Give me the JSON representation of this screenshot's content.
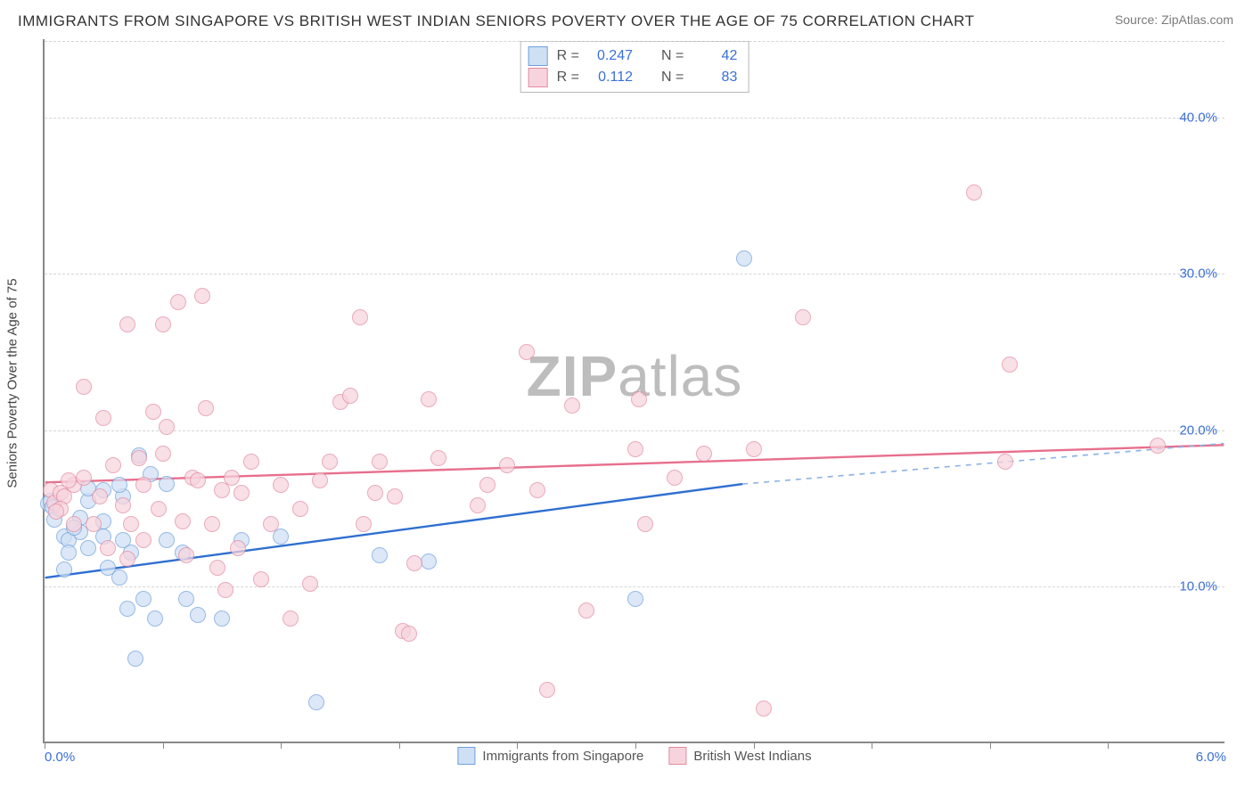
{
  "title": "IMMIGRANTS FROM SINGAPORE VS BRITISH WEST INDIAN SENIORS POVERTY OVER THE AGE OF 75 CORRELATION CHART",
  "source": "Source: ZipAtlas.com",
  "watermark_parts": [
    "ZIP",
    "atlas"
  ],
  "ylabel": "Seniors Poverty Over the Age of 75",
  "chart": {
    "type": "scatter",
    "background_color": "#ffffff",
    "grid_color": "#d5d5d5",
    "axis_color": "#888888",
    "label_color": "#444444",
    "value_color": "#3b6fd8",
    "xlim": [
      0.0,
      6.0
    ],
    "ylim": [
      0.0,
      45.0
    ],
    "yticks": [
      10.0,
      20.0,
      30.0,
      40.0
    ],
    "ytick_labels": [
      "10.0%",
      "20.0%",
      "30.0%",
      "40.0%"
    ],
    "xtick_positions": [
      0.0,
      0.6,
      1.2,
      1.8,
      2.4,
      3.0,
      3.6,
      4.2,
      4.8,
      5.4
    ],
    "xtick_labels": {
      "0.0": "0.0%",
      "6.0": "6.0%"
    },
    "marker_radius": 9,
    "marker_border_width": 1.4,
    "series": [
      {
        "name": "Immigrants from Singapore",
        "fill": "#cfe0f5",
        "stroke": "#6f9fdd",
        "fill_opacity": 0.72,
        "trend": {
          "color": "#2f6fd0",
          "width": 2.4,
          "dash_color": "#8fb4e6",
          "x1": 0.0,
          "y1": 10.5,
          "x_solid_end": 3.55,
          "y_solid_end": 16.5,
          "x2": 6.0,
          "y2": 19.1
        },
        "r_label": "R =",
        "r_value": "0.247",
        "n_label": "N =",
        "n_value": "42",
        "points": [
          [
            0.02,
            15.3
          ],
          [
            0.03,
            15.5
          ],
          [
            0.04,
            15.1
          ],
          [
            0.05,
            14.3
          ],
          [
            0.1,
            13.2
          ],
          [
            0.12,
            13.0
          ],
          [
            0.18,
            14.4
          ],
          [
            0.12,
            12.2
          ],
          [
            0.1,
            11.1
          ],
          [
            0.22,
            12.5
          ],
          [
            0.3,
            13.2
          ],
          [
            0.32,
            11.2
          ],
          [
            0.4,
            13.0
          ],
          [
            0.44,
            12.2
          ],
          [
            0.38,
            10.6
          ],
          [
            0.5,
            9.2
          ],
          [
            0.42,
            8.6
          ],
          [
            0.56,
            8.0
          ],
          [
            0.62,
            13.0
          ],
          [
            0.7,
            12.2
          ],
          [
            0.72,
            9.2
          ],
          [
            0.78,
            8.2
          ],
          [
            0.48,
            18.4
          ],
          [
            0.54,
            17.2
          ],
          [
            0.3,
            16.2
          ],
          [
            0.22,
            15.5
          ],
          [
            0.3,
            14.2
          ],
          [
            0.4,
            15.8
          ],
          [
            0.9,
            8.0
          ],
          [
            1.0,
            13.0
          ],
          [
            1.2,
            13.2
          ],
          [
            1.38,
            2.6
          ],
          [
            1.7,
            12.0
          ],
          [
            1.95,
            11.6
          ],
          [
            0.22,
            16.3
          ],
          [
            0.46,
            5.4
          ],
          [
            0.38,
            16.5
          ],
          [
            3.0,
            9.2
          ],
          [
            3.55,
            31.0
          ],
          [
            0.18,
            13.5
          ],
          [
            0.62,
            16.6
          ],
          [
            0.15,
            13.8
          ]
        ]
      },
      {
        "name": "British West Indians",
        "fill": "#f7d4dd",
        "stroke": "#e28ba1",
        "fill_opacity": 0.72,
        "trend": {
          "color": "#e76f8d",
          "width": 2.4,
          "x1": 0.0,
          "y1": 16.6,
          "x2": 6.0,
          "y2": 19.0
        },
        "r_label": "R =",
        "r_value": "0.112",
        "n_label": "N =",
        "n_value": "83",
        "points": [
          [
            0.03,
            16.2
          ],
          [
            0.05,
            15.4
          ],
          [
            0.08,
            16.0
          ],
          [
            0.1,
            15.8
          ],
          [
            0.15,
            16.5
          ],
          [
            0.2,
            22.8
          ],
          [
            0.2,
            17.0
          ],
          [
            0.25,
            14.0
          ],
          [
            0.3,
            20.8
          ],
          [
            0.35,
            17.8
          ],
          [
            0.4,
            15.2
          ],
          [
            0.42,
            26.8
          ],
          [
            0.44,
            14.0
          ],
          [
            0.48,
            18.2
          ],
          [
            0.5,
            16.5
          ],
          [
            0.55,
            21.2
          ],
          [
            0.58,
            15.0
          ],
          [
            0.6,
            18.5
          ],
          [
            0.62,
            20.2
          ],
          [
            0.68,
            28.2
          ],
          [
            0.7,
            14.2
          ],
          [
            0.72,
            12.0
          ],
          [
            0.75,
            17.0
          ],
          [
            0.78,
            16.8
          ],
          [
            0.8,
            28.6
          ],
          [
            0.82,
            21.4
          ],
          [
            0.85,
            14.0
          ],
          [
            0.88,
            11.2
          ],
          [
            0.9,
            16.2
          ],
          [
            0.92,
            9.8
          ],
          [
            0.95,
            17.0
          ],
          [
            0.98,
            12.5
          ],
          [
            1.0,
            16.0
          ],
          [
            1.05,
            18.0
          ],
          [
            1.1,
            10.5
          ],
          [
            1.15,
            14.0
          ],
          [
            1.2,
            16.5
          ],
          [
            1.25,
            8.0
          ],
          [
            1.3,
            15.0
          ],
          [
            1.35,
            10.2
          ],
          [
            1.4,
            16.8
          ],
          [
            1.45,
            18.0
          ],
          [
            1.5,
            21.8
          ],
          [
            1.55,
            22.2
          ],
          [
            1.6,
            27.2
          ],
          [
            1.62,
            14.0
          ],
          [
            1.68,
            16.0
          ],
          [
            1.78,
            15.8
          ],
          [
            1.82,
            7.2
          ],
          [
            1.85,
            7.0
          ],
          [
            1.88,
            11.5
          ],
          [
            1.95,
            22.0
          ],
          [
            2.0,
            18.2
          ],
          [
            2.2,
            15.2
          ],
          [
            2.25,
            16.5
          ],
          [
            2.35,
            17.8
          ],
          [
            2.45,
            25.0
          ],
          [
            2.5,
            16.2
          ],
          [
            2.55,
            3.4
          ],
          [
            2.68,
            21.6
          ],
          [
            2.75,
            8.5
          ],
          [
            3.0,
            18.8
          ],
          [
            3.02,
            22.0
          ],
          [
            3.05,
            14.0
          ],
          [
            3.2,
            17.0
          ],
          [
            3.35,
            18.5
          ],
          [
            3.6,
            18.8
          ],
          [
            3.65,
            2.2
          ],
          [
            3.85,
            27.2
          ],
          [
            4.72,
            35.2
          ],
          [
            4.88,
            18.0
          ],
          [
            4.9,
            24.2
          ],
          [
            5.65,
            19.0
          ],
          [
            0.32,
            12.5
          ],
          [
            0.6,
            26.8
          ],
          [
            0.28,
            15.8
          ],
          [
            0.15,
            14.0
          ],
          [
            0.5,
            13.0
          ],
          [
            1.7,
            18.0
          ],
          [
            0.42,
            11.8
          ],
          [
            0.08,
            15.0
          ],
          [
            0.12,
            16.8
          ],
          [
            0.06,
            14.8
          ]
        ]
      }
    ]
  }
}
